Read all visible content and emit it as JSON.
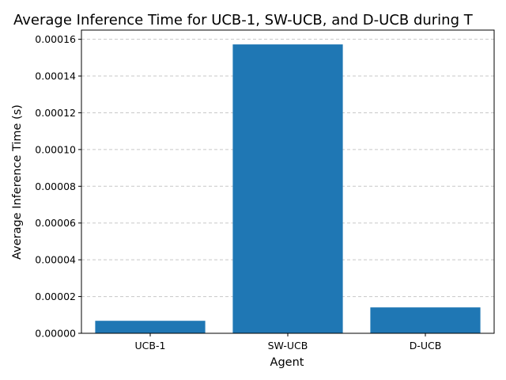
{
  "chart_data": {
    "type": "bar",
    "title": "Average Inference Time for UCB-1, SW-UCB, and D-UCB during T",
    "xlabel": "Agent",
    "ylabel": "Average Inference Time (s)",
    "categories": [
      "UCB-1",
      "SW-UCB",
      "D-UCB"
    ],
    "values": [
      6.8e-06,
      0.0001572,
      1.41e-05
    ],
    "ylim": [
      0,
      0.000165
    ],
    "yticks": [
      0,
      2e-05,
      4e-05,
      6e-05,
      8e-05,
      0.0001,
      0.00012,
      0.00014,
      0.00016
    ],
    "ytick_labels": [
      "0.00000",
      "0.00002",
      "0.00004",
      "0.00006",
      "0.00008",
      "0.00010",
      "0.00012",
      "0.00014",
      "0.00016"
    ],
    "grid": true,
    "grid_axis": "y",
    "bar_color": "#1f77b4",
    "grid_color": "#c8c8c8"
  }
}
